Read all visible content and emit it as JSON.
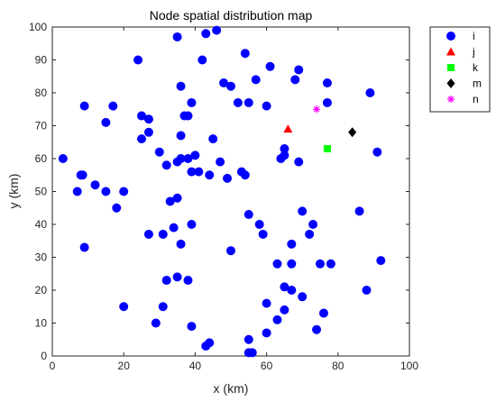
{
  "chart_data": {
    "type": "scatter",
    "title": "Node spatial distribution map",
    "xlabel": "x (km)",
    "ylabel": "y (km)",
    "xlim": [
      0,
      100
    ],
    "ylim": [
      0,
      100
    ],
    "xticks": [
      "0",
      "20",
      "40",
      "60",
      "80",
      "100"
    ],
    "yticks": [
      "0",
      "10",
      "20",
      "30",
      "40",
      "50",
      "60",
      "70",
      "80",
      "90",
      "100"
    ],
    "grid": false,
    "legend_position": "outside-top-right",
    "series": [
      {
        "name": "i",
        "marker": "circle",
        "color": "#0000ff",
        "points": [
          [
            3,
            60
          ],
          [
            8,
            55
          ],
          [
            8.5,
            55
          ],
          [
            9,
            76
          ],
          [
            7,
            50
          ],
          [
            9,
            33
          ],
          [
            12,
            52
          ],
          [
            15,
            50
          ],
          [
            15,
            71
          ],
          [
            17,
            76
          ],
          [
            18,
            45
          ],
          [
            20,
            50
          ],
          [
            20,
            15
          ],
          [
            24,
            90
          ],
          [
            25,
            73
          ],
          [
            25,
            66
          ],
          [
            27,
            72
          ],
          [
            27,
            68
          ],
          [
            27,
            37
          ],
          [
            29,
            10
          ],
          [
            30,
            62
          ],
          [
            31,
            15
          ],
          [
            31,
            37
          ],
          [
            32,
            58
          ],
          [
            32,
            23
          ],
          [
            33,
            47
          ],
          [
            34,
            39
          ],
          [
            35,
            97
          ],
          [
            35,
            59
          ],
          [
            35,
            48
          ],
          [
            35,
            24
          ],
          [
            36,
            82
          ],
          [
            36,
            67
          ],
          [
            36,
            60
          ],
          [
            36,
            34
          ],
          [
            37,
            73
          ],
          [
            38,
            73
          ],
          [
            38,
            23
          ],
          [
            38,
            60
          ],
          [
            39,
            40
          ],
          [
            39,
            56
          ],
          [
            39,
            77
          ],
          [
            39,
            9
          ],
          [
            40,
            61
          ],
          [
            41,
            56
          ],
          [
            42,
            90
          ],
          [
            43,
            98
          ],
          [
            43,
            3
          ],
          [
            44,
            4
          ],
          [
            44,
            55
          ],
          [
            45,
            66
          ],
          [
            46,
            99
          ],
          [
            47,
            59
          ],
          [
            48,
            83
          ],
          [
            49,
            54
          ],
          [
            50,
            82
          ],
          [
            50,
            32
          ],
          [
            52,
            77
          ],
          [
            53,
            56
          ],
          [
            54,
            92
          ],
          [
            54,
            55
          ],
          [
            55,
            77
          ],
          [
            55,
            43
          ],
          [
            55,
            5
          ],
          [
            55,
            1
          ],
          [
            56,
            1
          ],
          [
            57,
            84
          ],
          [
            58,
            40
          ],
          [
            59,
            37
          ],
          [
            60,
            76
          ],
          [
            61,
            88
          ],
          [
            60,
            16
          ],
          [
            60,
            7
          ],
          [
            63,
            28
          ],
          [
            63,
            11
          ],
          [
            64,
            60
          ],
          [
            65,
            63
          ],
          [
            65,
            61
          ],
          [
            65,
            21
          ],
          [
            65,
            14
          ],
          [
            67,
            34
          ],
          [
            67,
            28
          ],
          [
            67,
            20
          ],
          [
            68,
            84
          ],
          [
            69,
            87
          ],
          [
            69,
            59
          ],
          [
            70,
            44
          ],
          [
            70,
            18
          ],
          [
            72,
            37
          ],
          [
            73,
            40
          ],
          [
            74,
            8
          ],
          [
            75,
            28
          ],
          [
            76,
            13
          ],
          [
            77,
            83
          ],
          [
            77,
            77
          ],
          [
            78,
            28
          ],
          [
            86,
            44
          ],
          [
            88,
            20
          ],
          [
            89,
            80
          ],
          [
            91,
            62
          ],
          [
            92,
            29
          ]
        ]
      },
      {
        "name": "j",
        "marker": "triangle",
        "color": "#ff0000",
        "points": [
          [
            66,
            69
          ]
        ]
      },
      {
        "name": "k",
        "marker": "square",
        "color": "#00ff00",
        "points": [
          [
            77,
            63
          ]
        ]
      },
      {
        "name": "m",
        "marker": "diamond",
        "color": "#000000",
        "points": [
          [
            84,
            68
          ]
        ]
      },
      {
        "name": "n",
        "marker": "star",
        "color": "#ff00ff",
        "points": [
          [
            74,
            75
          ]
        ]
      }
    ]
  }
}
